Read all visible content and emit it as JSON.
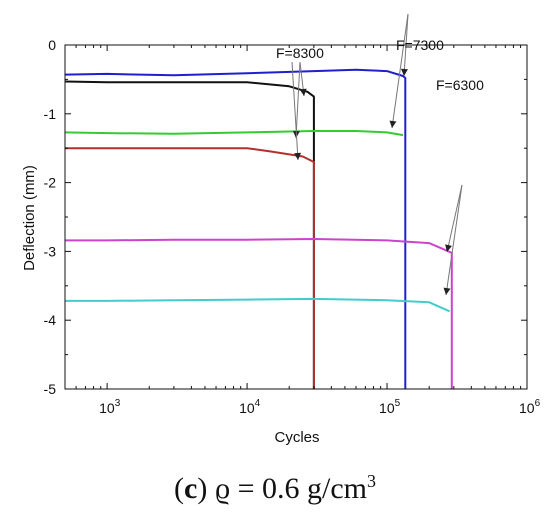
{
  "chart_data": {
    "type": "line",
    "xlabel": "Cycles",
    "ylabel": "Deflection (mm)",
    "xscale": "log",
    "xlim": [
      500,
      1000000
    ],
    "ylim": [
      -5,
      0
    ],
    "yticks": [
      "0",
      "-1",
      "-2",
      "-3",
      "-4",
      "-5"
    ],
    "xticks": [
      {
        "base": "10",
        "exp": "3",
        "value": 1000
      },
      {
        "base": "10",
        "exp": "4",
        "value": 10000
      },
      {
        "base": "10",
        "exp": "5",
        "value": 100000
      },
      {
        "base": "10",
        "exp": "6",
        "value": 1000000
      }
    ],
    "annotations": [
      "F=8300",
      "F=7300",
      "F=6300"
    ],
    "series": [
      {
        "color": "#1f1fcf",
        "x": [
          500,
          1000,
          3000,
          10000,
          30000,
          60000,
          100000,
          130000,
          135000,
          135000
        ],
        "y": [
          -0.43,
          -0.42,
          -0.44,
          -0.41,
          -0.38,
          -0.36,
          -0.38,
          -0.45,
          -0.48,
          -5
        ]
      },
      {
        "color": "#111111",
        "x": [
          500,
          1000,
          3000,
          10000,
          20000,
          27000,
          30000,
          30000
        ],
        "y": [
          -0.53,
          -0.54,
          -0.54,
          -0.54,
          -0.6,
          -0.68,
          -0.75,
          -5
        ]
      },
      {
        "color": "#33cc33",
        "x": [
          500,
          1000,
          3000,
          10000,
          30000,
          60000,
          100000,
          130000
        ],
        "y": [
          -1.27,
          -1.28,
          -1.29,
          -1.27,
          -1.25,
          -1.25,
          -1.27,
          -1.31
        ]
      },
      {
        "color": "#b3302a",
        "x": [
          500,
          1000,
          3000,
          10000,
          15000,
          25000,
          30000,
          30000
        ],
        "y": [
          -1.5,
          -1.5,
          -1.5,
          -1.5,
          -1.55,
          -1.62,
          -1.7,
          -5
        ]
      },
      {
        "color": "#cc44cc",
        "x": [
          500,
          1000,
          3000,
          10000,
          30000,
          100000,
          200000,
          290000,
          290000
        ],
        "y": [
          -2.84,
          -2.84,
          -2.83,
          -2.83,
          -2.82,
          -2.84,
          -2.88,
          -3.02,
          -5
        ]
      },
      {
        "color": "#44cccc",
        "x": [
          500,
          1000,
          3000,
          10000,
          30000,
          100000,
          200000,
          280000
        ],
        "y": [
          -3.72,
          -3.72,
          -3.71,
          -3.7,
          -3.69,
          -3.71,
          -3.74,
          -3.87
        ]
      }
    ]
  },
  "caption": {
    "label": "c",
    "formula": "ϱ = 0.6 g/cm",
    "exponent": "3"
  }
}
